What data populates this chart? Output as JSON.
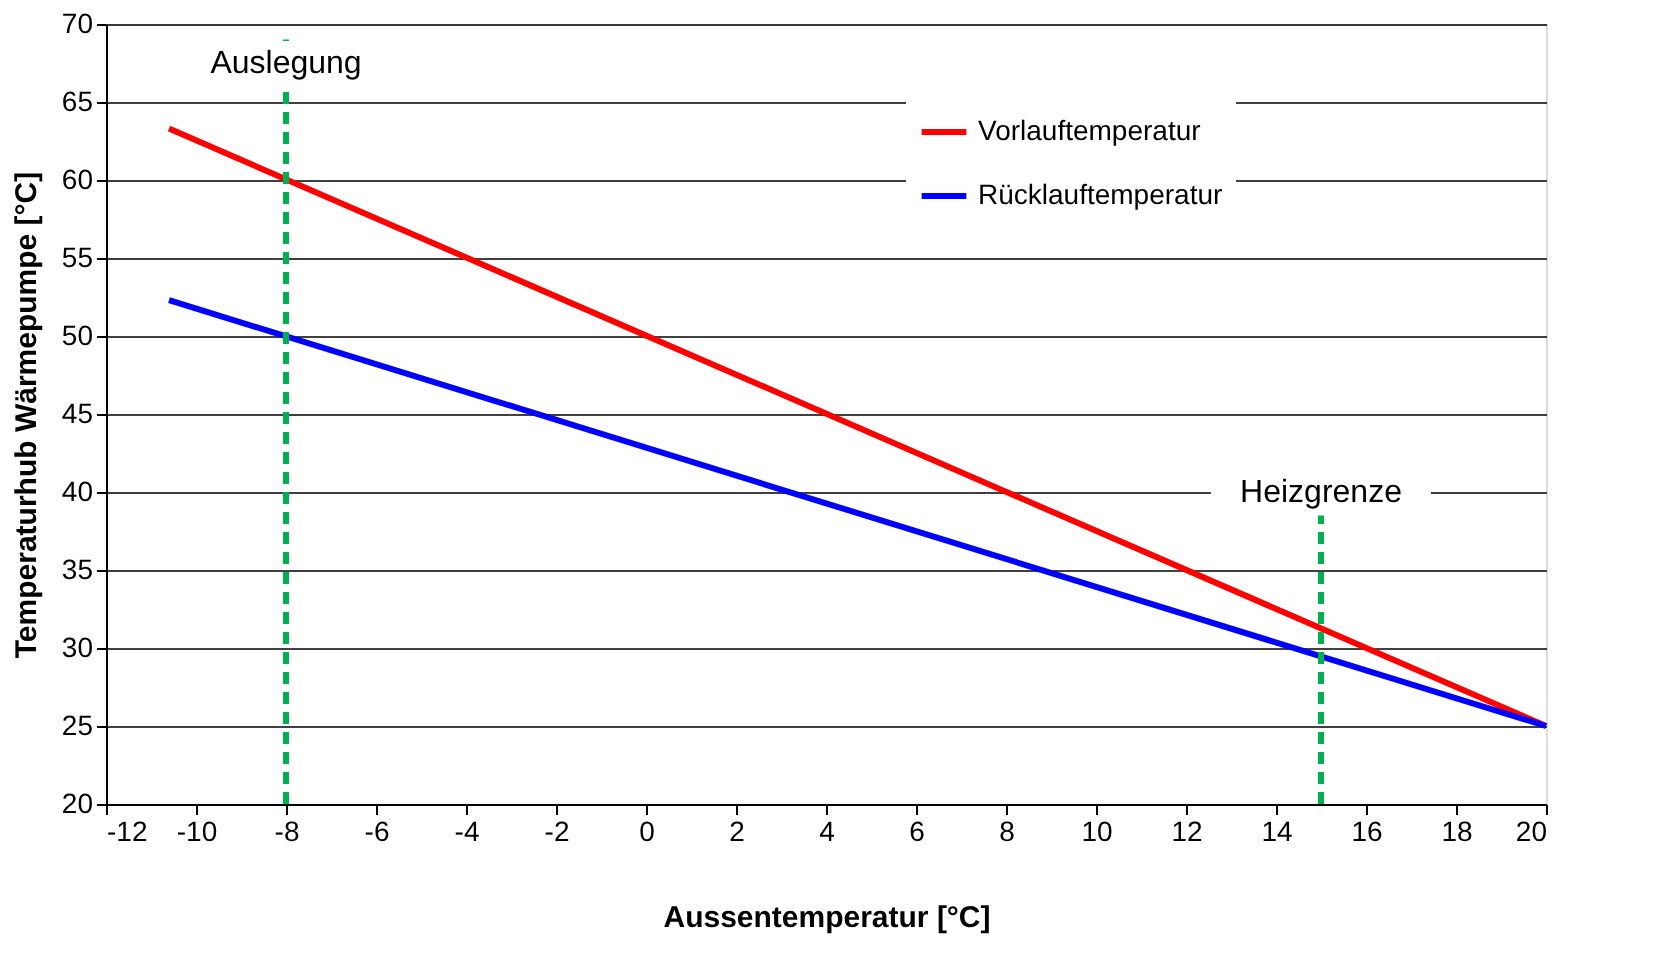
{
  "chart_data": {
    "type": "line",
    "xlabel": "Aussentemperatur [°C]",
    "ylabel": "Temperaturhub Wärmepumpe [°C]",
    "xlim": [
      -12,
      20
    ],
    "xticks": [
      -12,
      -10,
      -8,
      -6,
      -4,
      -2,
      0,
      2,
      4,
      6,
      8,
      10,
      12,
      14,
      16,
      18,
      20
    ],
    "ylim": [
      20,
      70
    ],
    "yticks": [
      20,
      25,
      30,
      35,
      40,
      45,
      50,
      55,
      60,
      65,
      70
    ],
    "grid": "y",
    "legend": "top right",
    "marker": "none",
    "line_style": "solid",
    "x": [
      -10.6,
      20
    ],
    "series": [
      {
        "name": "Vorlauftemperatur",
        "color": "#ff0000",
        "values": [
          63.3,
          25
        ]
      },
      {
        "name": "Rücklauftemperatur",
        "color": "#0000ff",
        "values": [
          52.3,
          25
        ]
      }
    ],
    "ref_lines": [
      {
        "axis": "x",
        "value": -8,
        "label": "Auslegung",
        "color": "#00b050",
        "line_style": "dashed"
      },
      {
        "axis": "x",
        "value": 15,
        "label": "Heizgrenze",
        "color": "#00b050",
        "line_style": "dashed"
      }
    ]
  }
}
